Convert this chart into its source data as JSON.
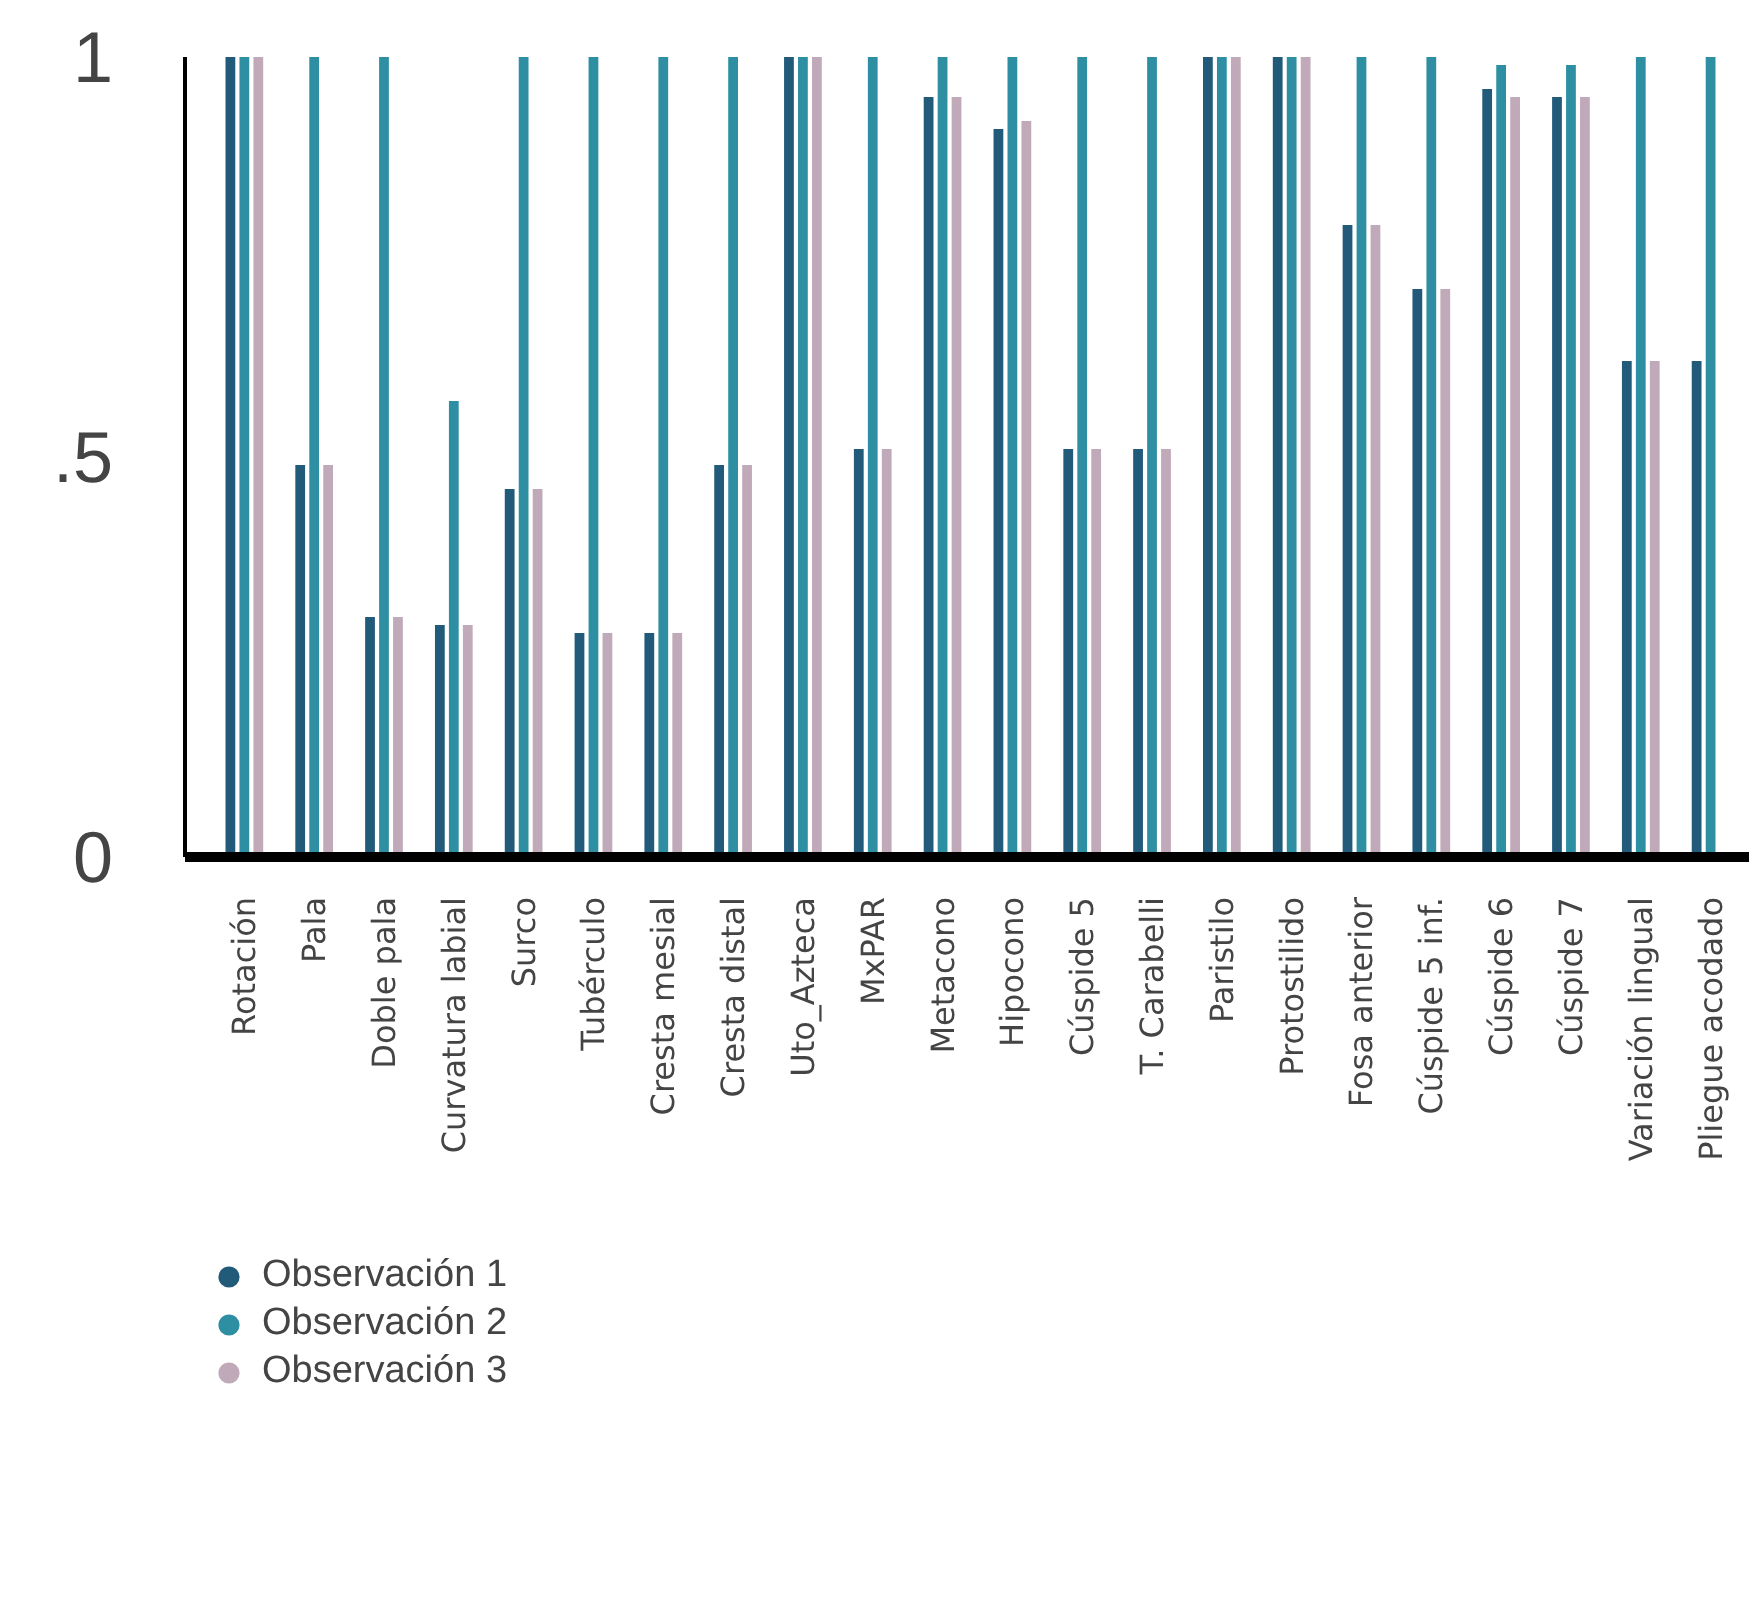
{
  "chart_data": {
    "type": "bar",
    "categories": [
      "Rotación",
      "Pala",
      "Doble pala",
      "Curvatura labial",
      "Surco",
      "Tubérculo",
      "Cresta mesial",
      "Cresta distal",
      "Uto_Azteca",
      "MxPAR",
      "Metacono",
      "Hipocono",
      "Cúspide 5",
      "T. Carabelli",
      "Paristilo",
      "Protostilido",
      "Fosa anterior",
      "Cúspide 5 inf.",
      "Cúspide 6",
      "Cúspide 7",
      "Variación lingual",
      "Pliegue acodado"
    ],
    "series": [
      {
        "name": "Observación 1",
        "color": "#225a7a",
        "values": [
          1,
          0.49,
          0.3,
          0.29,
          0.46,
          0.28,
          0.28,
          0.49,
          1,
          0.51,
          0.95,
          0.91,
          0.51,
          0.51,
          1,
          1,
          0.79,
          0.71,
          0.96,
          0.95,
          0.62,
          0.62
        ]
      },
      {
        "name": "Observación 2",
        "color": "#2e8fa3",
        "values": [
          1,
          1,
          1,
          0.57,
          1,
          1,
          1,
          1,
          1,
          1,
          1,
          1,
          1,
          1,
          1,
          1,
          1,
          1,
          0.99,
          0.99,
          1,
          1
        ]
      },
      {
        "name": "Observación 3",
        "color": "#c0aab9",
        "values": [
          1,
          0.49,
          0.3,
          0.29,
          0.46,
          0.28,
          0.28,
          0.49,
          1,
          0.51,
          0.95,
          0.92,
          0.51,
          0.51,
          1,
          1,
          0.79,
          0.71,
          0.95,
          0.95,
          0.62,
          null
        ]
      }
    ],
    "ylim": [
      0,
      1
    ],
    "yticks": [
      0,
      {
        "value": 0.5,
        "label": ".5"
      },
      1
    ],
    "grid": false,
    "legend": "bottom left",
    "marker": "circle"
  }
}
